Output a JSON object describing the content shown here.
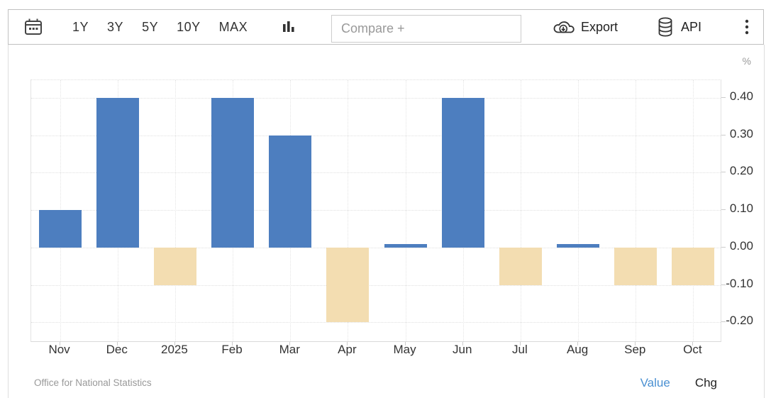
{
  "toolbar": {
    "ranges": [
      "1Y",
      "3Y",
      "5Y",
      "10Y",
      "MAX"
    ],
    "compare_placeholder": "Compare +",
    "export_label": "Export",
    "api_label": "API"
  },
  "chart_data": {
    "type": "bar",
    "unit": "%",
    "categories": [
      "Nov",
      "Dec",
      "2025",
      "Feb",
      "Mar",
      "Apr",
      "May",
      "Jun",
      "Jul",
      "Aug",
      "Sep",
      "Oct"
    ],
    "values": [
      0.1,
      0.4,
      -0.1,
      0.4,
      0.3,
      -0.2,
      0.01,
      0.4,
      -0.1,
      0.01,
      -0.1,
      -0.1
    ],
    "y_tick_labels": [
      "0.40",
      "0.30",
      "0.20",
      "0.10",
      "0.00",
      "-0.10",
      "-0.20"
    ],
    "y_tick_values": [
      0.4,
      0.3,
      0.2,
      0.1,
      0.0,
      -0.1,
      -0.2
    ],
    "ylim": [
      -0.254,
      0.447
    ],
    "grid": true,
    "legend_position": "none",
    "positive_color": "#4d7ebf",
    "negative_color": "#f3ddb1"
  },
  "footer": {
    "source": "Office for National Statistics",
    "value_label": "Value",
    "chg_label": "Chg",
    "value_color": "#4a90d2"
  }
}
